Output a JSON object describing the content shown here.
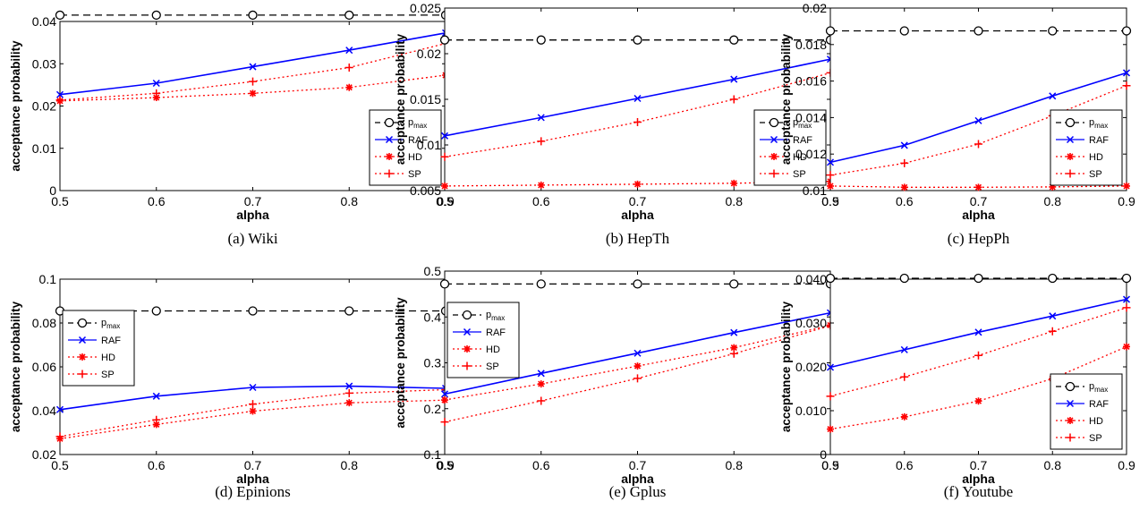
{
  "chart_data": [
    {
      "type": "line",
      "caption": "(a) Wiki",
      "xlabel": "alpha",
      "ylabel": "acceptance probability",
      "xlim": [
        0.5,
        0.9
      ],
      "ylim": [
        0,
        0.04
      ],
      "xticks": [
        "0.5",
        "0.6",
        "0.7",
        "0.8",
        "0.9"
      ],
      "yticks": [
        "0",
        "0.01",
        "0.02",
        "0.03",
        "0.04"
      ],
      "ytick_values": [
        0,
        0.01,
        0.02,
        0.03,
        0.04
      ],
      "legend_placement": "bottom-right",
      "x": [
        0.5,
        0.6,
        0.7,
        0.8,
        0.9
      ],
      "series": [
        {
          "name": "p_max",
          "values": [
            0.0415,
            0.0415,
            0.0415,
            0.0415,
            0.0415
          ]
        },
        {
          "name": "RAF",
          "values": [
            0.0227,
            0.0254,
            0.0293,
            0.0332,
            0.0373
          ]
        },
        {
          "name": "HD",
          "values": [
            0.0212,
            0.022,
            0.023,
            0.0244,
            0.0273
          ]
        },
        {
          "name": "SP",
          "values": [
            0.0214,
            0.023,
            0.0258,
            0.0291,
            0.0348
          ]
        }
      ]
    },
    {
      "type": "line",
      "caption": "(b) HepTh",
      "xlabel": "alpha",
      "ylabel": "acceptance probability",
      "xlim": [
        0.5,
        0.9
      ],
      "ylim": [
        0.005,
        0.025
      ],
      "xticks": [
        "0.5",
        "0.6",
        "0.7",
        "0.8",
        "0.9"
      ],
      "yticks": [
        "0.005",
        "0.01",
        "0.015",
        "0.02",
        "0.025"
      ],
      "ytick_values": [
        0.005,
        0.01,
        0.015,
        0.02,
        0.025
      ],
      "legend_placement": "bottom-right",
      "x": [
        0.5,
        0.6,
        0.7,
        0.8,
        0.9
      ],
      "series": [
        {
          "name": "p_max",
          "values": [
            0.0215,
            0.0215,
            0.0215,
            0.0215,
            0.0215
          ]
        },
        {
          "name": "RAF",
          "values": [
            0.011,
            0.013,
            0.0151,
            0.0172,
            0.0194
          ]
        },
        {
          "name": "HD",
          "values": [
            0.0055,
            0.0056,
            0.0057,
            0.0058,
            0.006
          ]
        },
        {
          "name": "SP",
          "values": [
            0.0087,
            0.0104,
            0.0125,
            0.015,
            0.0179
          ]
        }
      ]
    },
    {
      "type": "line",
      "caption": "(c) HepPh",
      "xlabel": "alpha",
      "ylabel": "acceptance probability",
      "xlim": [
        0.5,
        0.9
      ],
      "ylim": [
        0.01,
        0.02
      ],
      "xticks": [
        "0.5",
        "0.6",
        "0.7",
        "0.8",
        "0.9"
      ],
      "yticks": [
        "0.01",
        "0.012",
        "0.014",
        "0.016",
        "0.018",
        "0.02"
      ],
      "ytick_values": [
        0.01,
        0.012,
        0.014,
        0.016,
        0.018,
        0.02
      ],
      "legend_placement": "bottom-right",
      "x": [
        0.5,
        0.6,
        0.7,
        0.8,
        0.9
      ],
      "series": [
        {
          "name": "p_max",
          "values": [
            0.01875,
            0.01875,
            0.01875,
            0.01875,
            0.01875
          ]
        },
        {
          "name": "RAF",
          "values": [
            0.01155,
            0.01248,
            0.01383,
            0.01518,
            0.01645
          ]
        },
        {
          "name": "HD",
          "values": [
            0.01025,
            0.01018,
            0.01018,
            0.0102,
            0.01025
          ]
        },
        {
          "name": "SP",
          "values": [
            0.01085,
            0.0115,
            0.01255,
            0.0141,
            0.01575
          ]
        }
      ]
    },
    {
      "type": "line",
      "caption": "(d) Epinions",
      "xlabel": "alpha",
      "ylabel": "acceptance probability",
      "xlim": [
        0.5,
        0.9
      ],
      "ylim": [
        0.02,
        0.1
      ],
      "xticks": [
        "0.5",
        "0.6",
        "0.7",
        "0.8",
        "0.9"
      ],
      "yticks": [
        "0.02",
        "0.04",
        "0.06",
        "0.08",
        "0.1"
      ],
      "ytick_values": [
        0.02,
        0.04,
        0.06,
        0.08,
        0.1
      ],
      "legend_placement": "top-left",
      "x": [
        0.5,
        0.6,
        0.7,
        0.8,
        0.9
      ],
      "series": [
        {
          "name": "p_max",
          "values": [
            0.0855,
            0.0855,
            0.0855,
            0.0855,
            0.0855
          ]
        },
        {
          "name": "RAF",
          "values": [
            0.0405,
            0.0466,
            0.0506,
            0.0512,
            0.0502
          ]
        },
        {
          "name": "HD",
          "values": [
            0.0272,
            0.0337,
            0.0398,
            0.0436,
            0.0448
          ]
        },
        {
          "name": "SP",
          "values": [
            0.0282,
            0.0358,
            0.043,
            0.048,
            0.0496
          ]
        }
      ]
    },
    {
      "type": "line",
      "caption": "(e) Gplus",
      "xlabel": "alpha",
      "ylabel": "acceptance probability",
      "xlim": [
        0.5,
        0.9
      ],
      "ylim": [
        0.1,
        0.5
      ],
      "xticks": [
        "0.5",
        "0.6",
        "0.7",
        "0.8",
        "0.9"
      ],
      "yticks": [
        "0.1",
        "0.2",
        "0.3",
        "0.4",
        "0.5"
      ],
      "ytick_values": [
        0.1,
        0.2,
        0.3,
        0.4,
        0.5
      ],
      "legend_placement": "top-left",
      "x": [
        0.5,
        0.6,
        0.7,
        0.8,
        0.9
      ],
      "series": [
        {
          "name": "p_max",
          "values": [
            0.472,
            0.472,
            0.472,
            0.472,
            0.472
          ]
        },
        {
          "name": "RAF",
          "values": [
            0.232,
            0.277,
            0.321,
            0.366,
            0.409
          ]
        },
        {
          "name": "HD",
          "values": [
            0.219,
            0.254,
            0.293,
            0.333,
            0.382
          ]
        },
        {
          "name": "SP",
          "values": [
            0.171,
            0.217,
            0.266,
            0.32,
            0.381
          ]
        }
      ]
    },
    {
      "type": "line",
      "caption": "(f) Youtube",
      "xlabel": "alpha",
      "ylabel": "acceptance probability",
      "xlim": [
        0.5,
        0.9
      ],
      "ylim": [
        0,
        0.04
      ],
      "xticks": [
        "0.5",
        "0.6",
        "0.7",
        "0.8",
        "0.9"
      ],
      "yticks": [
        "0",
        "0.010",
        "0.020",
        "0.030",
        "0.040"
      ],
      "ytick_values": [
        0,
        0.01,
        0.02,
        0.03,
        0.04
      ],
      "legend_placement": "bottom-right",
      "x": [
        0.5,
        0.6,
        0.7,
        0.8,
        0.9
      ],
      "series": [
        {
          "name": "p_max",
          "values": [
            0.0402,
            0.0402,
            0.0402,
            0.0402,
            0.0402
          ]
        },
        {
          "name": "RAF",
          "values": [
            0.0199,
            0.0239,
            0.0279,
            0.0316,
            0.0354
          ]
        },
        {
          "name": "HD",
          "values": [
            0.0058,
            0.0086,
            0.0122,
            0.0173,
            0.0246
          ]
        },
        {
          "name": "SP",
          "values": [
            0.0133,
            0.0177,
            0.0226,
            0.0281,
            0.0335
          ]
        }
      ]
    }
  ],
  "series_styles": {
    "p_max": {
      "color": "#000000",
      "dash": "8,5",
      "marker": "circle-open"
    },
    "RAF": {
      "color": "#0000ff",
      "dash": "",
      "marker": "x"
    },
    "HD": {
      "color": "#ff0000",
      "dash": "2,3",
      "marker": "asterisk"
    },
    "SP": {
      "color": "#ff0000",
      "dash": "2,3",
      "marker": "plus"
    }
  }
}
